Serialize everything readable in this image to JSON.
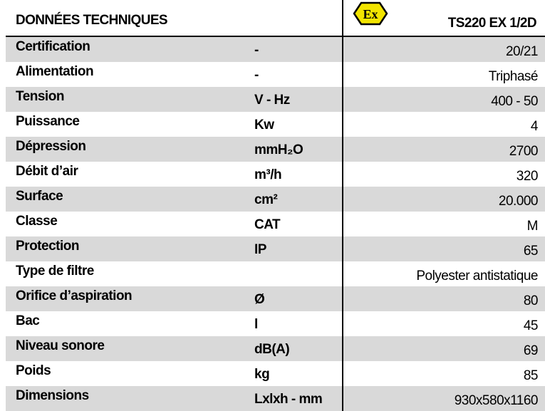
{
  "header": {
    "title": "DONNÉES TECHNIQUES",
    "logo": "Ex",
    "model": "TS220 EX 1/2D"
  },
  "table": {
    "rows": [
      {
        "label": "Certification",
        "unit": "-",
        "value": "20/21"
      },
      {
        "label": "Alimentation",
        "unit": "-",
        "value": "Triphasé"
      },
      {
        "label": "Tension",
        "unit": "V - Hz",
        "value": "400 - 50"
      },
      {
        "label": "Puissance",
        "unit": "Kw",
        "value": "4"
      },
      {
        "label": "Dépression",
        "unit": "mmH₂O",
        "value": "2700"
      },
      {
        "label": "Débit d’air",
        "unit": "m³/h",
        "value": "320"
      },
      {
        "label": "Surface",
        "unit": "cm²",
        "value": "20.000"
      },
      {
        "label": "Classe",
        "unit": "CAT",
        "value": "M"
      },
      {
        "label": "Protection",
        "unit": "IP",
        "value": "65"
      },
      {
        "label": "Type de filtre",
        "value": "Polyester antistatique"
      },
      {
        "label": "Orifice d’aspiration",
        "unit": "Ø",
        "value": "80"
      },
      {
        "label": "Bac",
        "unit": "l",
        "value": "45"
      },
      {
        "label": "Niveau sonore",
        "unit": "dB(A)",
        "value": "69"
      },
      {
        "label": "Poids",
        "unit": "kg",
        "value": "85"
      },
      {
        "label": "Dimensions",
        "unit": "Lxlxh - mm",
        "value": "930x580x1160"
      }
    ]
  }
}
